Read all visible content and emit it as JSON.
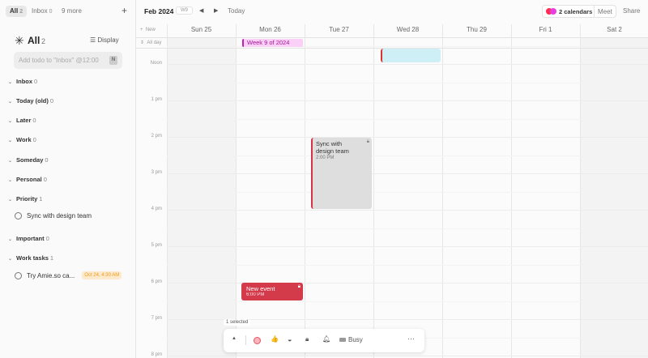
{
  "sidebar": {
    "tabs": [
      {
        "label": "All",
        "count": "2"
      },
      {
        "label": "Inbox",
        "count": "0"
      },
      {
        "label": "9 more"
      }
    ],
    "add_icon": "plus-icon",
    "title": "All",
    "title_count": "2",
    "title_icon": "asterisk-icon",
    "display_label": "Display",
    "add_todo_placeholder": "Add todo to \"Inbox\" @12:00",
    "shortcut": "N",
    "sections": [
      {
        "label": "Inbox",
        "count": "0"
      },
      {
        "label": "Today (old)",
        "count": "0"
      },
      {
        "label": "Later",
        "count": "0"
      },
      {
        "label": "Work",
        "count": "0"
      },
      {
        "label": "Someday",
        "count": "0"
      },
      {
        "label": "Personal",
        "count": "0"
      },
      {
        "label": "Priority",
        "count": "1"
      },
      {
        "label": "Important",
        "count": "0"
      },
      {
        "label": "Work tasks",
        "count": "1"
      }
    ],
    "todos": [
      {
        "label": "Sync with design team"
      },
      {
        "label": "Try Amie.so ca...",
        "badge": "Oct 24, 4:30 AM"
      }
    ]
  },
  "header": {
    "month": "Feb 2024",
    "week": "W9",
    "today": "Today",
    "calendars": "2 calendars",
    "meet": "Meet",
    "share": "Share",
    "calendar_colors": [
      "#ff2d55",
      "#e83ee0"
    ]
  },
  "calendar": {
    "new_label": "New",
    "allday_label": "All day",
    "days": [
      "Sun 25",
      "Mon 26",
      "Tue 27",
      "Wed 28",
      "Thu 29",
      "Fri  1",
      "Sat  2"
    ],
    "times": [
      "Noon",
      "1 pm",
      "2 pm",
      "3 pm",
      "4 pm",
      "5 pm",
      "6 pm",
      "7 pm",
      "8 pm"
    ],
    "allday_event": "Week 9 of 2024",
    "events": [
      {
        "title": "Sync with design team",
        "time": "2:00 PM"
      },
      {
        "title": "New event",
        "time": "6:00 PM"
      }
    ]
  },
  "toolbar": {
    "selected": "1 selected",
    "busy": "Busy"
  }
}
